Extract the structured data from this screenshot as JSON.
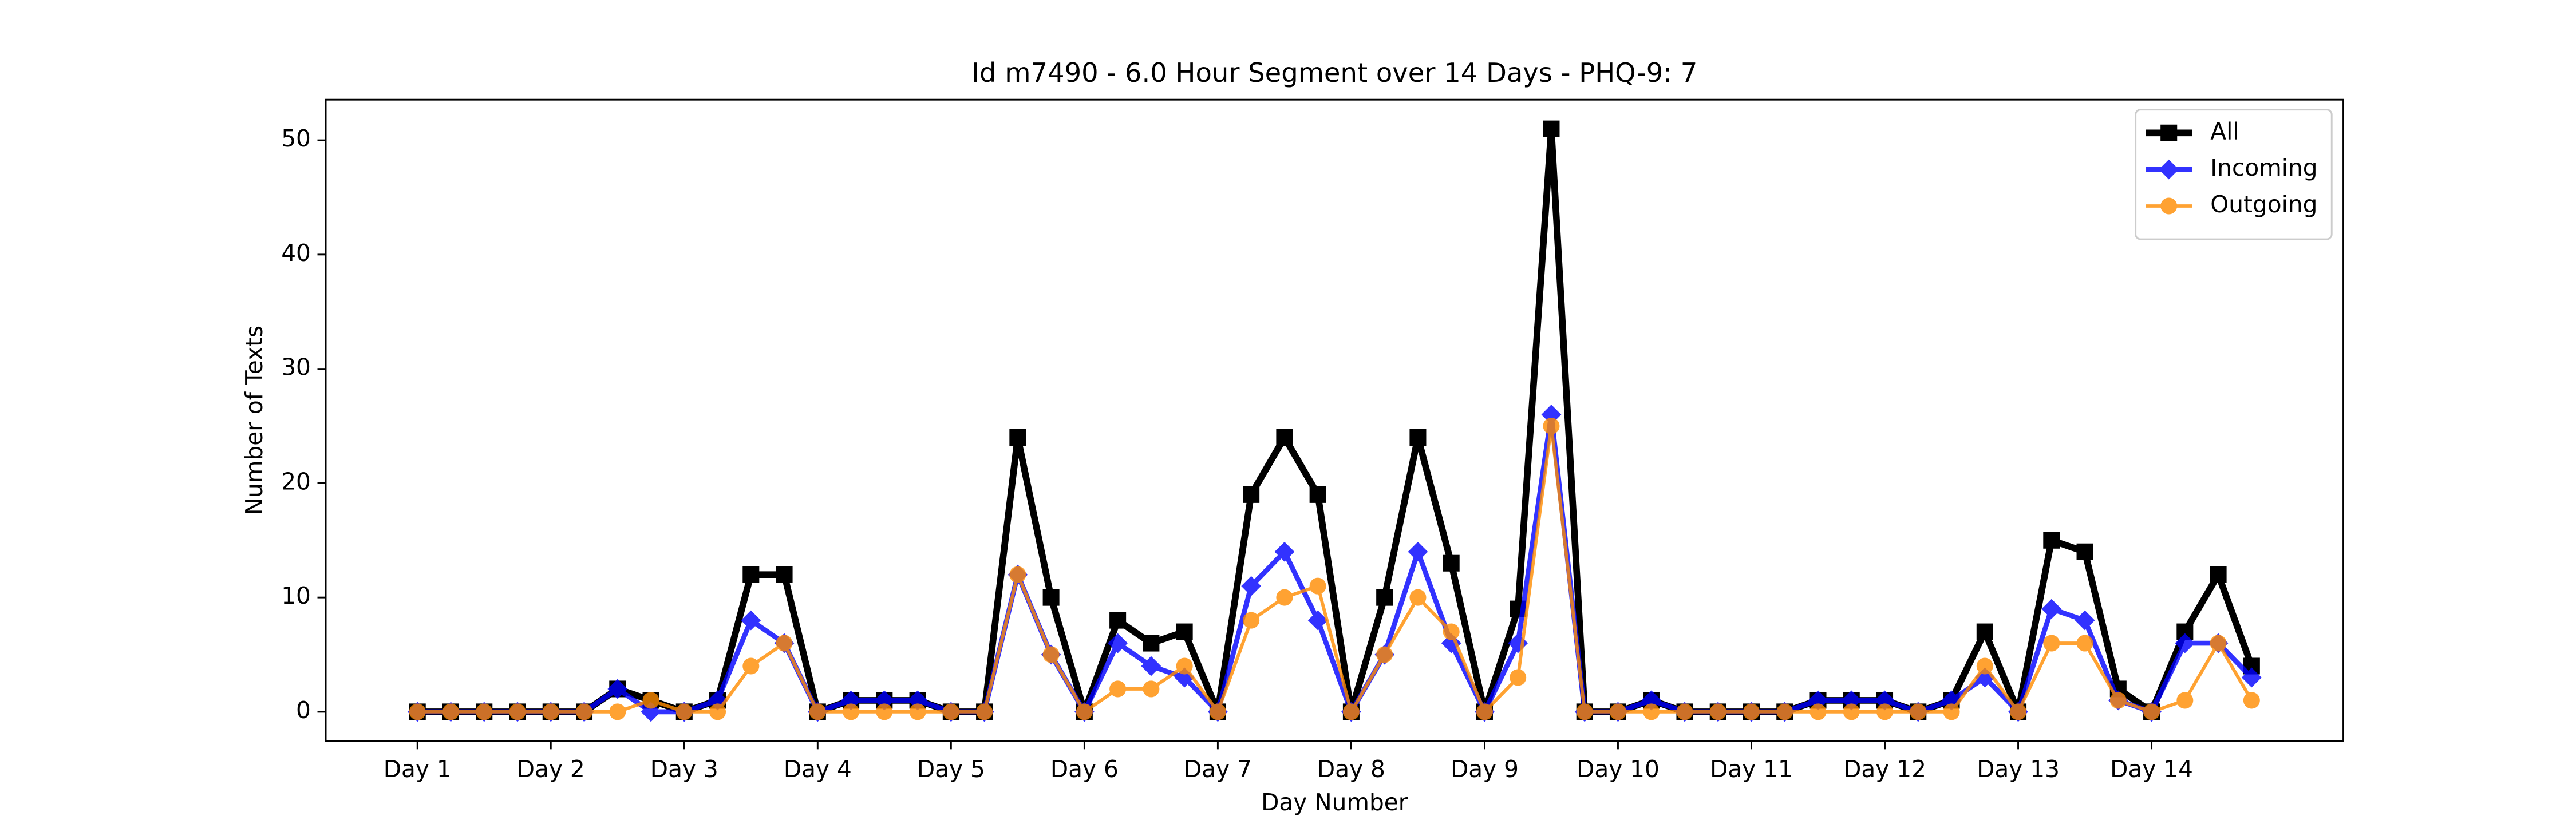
{
  "chart_data": {
    "type": "line",
    "title": "Id m7490 - 6.0 Hour Segment over 14 Days - PHQ-9: 7",
    "xlabel": "Day Number",
    "ylabel": "Number of Texts",
    "x": [
      0,
      1,
      2,
      3,
      4,
      5,
      6,
      7,
      8,
      9,
      10,
      11,
      12,
      13,
      14,
      15,
      16,
      17,
      18,
      19,
      20,
      21,
      22,
      23,
      24,
      25,
      26,
      27,
      28,
      29,
      30,
      31,
      32,
      33,
      34,
      35,
      36,
      37,
      38,
      39,
      40,
      41,
      42,
      43,
      44,
      45,
      46,
      47,
      48,
      49,
      50,
      51,
      52,
      53,
      54,
      55
    ],
    "series": [
      {
        "name": "All",
        "color": "#000000",
        "marker": "square",
        "values": [
          0,
          0,
          0,
          0,
          0,
          0,
          2,
          1,
          0,
          1,
          12,
          12,
          0,
          1,
          1,
          1,
          0,
          0,
          24,
          10,
          0,
          8,
          6,
          7,
          0,
          19,
          24,
          19,
          0,
          10,
          24,
          13,
          0,
          9,
          51,
          0,
          0,
          1,
          0,
          0,
          0,
          0,
          1,
          1,
          1,
          0,
          1,
          7,
          0,
          15,
          14,
          2,
          0,
          7,
          12,
          4
        ]
      },
      {
        "name": "Incoming",
        "color": "#0000ff",
        "marker": "diamond",
        "values": [
          0,
          0,
          0,
          0,
          0,
          0,
          2,
          0,
          0,
          1,
          8,
          6,
          0,
          1,
          1,
          1,
          0,
          0,
          12,
          5,
          0,
          6,
          4,
          3,
          0,
          11,
          14,
          8,
          0,
          5,
          14,
          6,
          0,
          6,
          26,
          0,
          0,
          1,
          0,
          0,
          0,
          0,
          1,
          1,
          1,
          0,
          1,
          3,
          0,
          9,
          8,
          1,
          0,
          6,
          6,
          3
        ]
      },
      {
        "name": "Outgoing",
        "color": "#ff8c00",
        "marker": "circle",
        "values": [
          0,
          0,
          0,
          0,
          0,
          0,
          0,
          1,
          0,
          0,
          4,
          6,
          0,
          0,
          0,
          0,
          0,
          0,
          12,
          5,
          0,
          2,
          2,
          4,
          0,
          8,
          10,
          11,
          0,
          5,
          10,
          7,
          0,
          3,
          25,
          0,
          0,
          0,
          0,
          0,
          0,
          0,
          0,
          0,
          0,
          0,
          0,
          4,
          0,
          6,
          6,
          1,
          0,
          1,
          6,
          1
        ]
      }
    ],
    "xlim": [
      -2.75,
      57.75
    ],
    "xticks": [
      {
        "value": 0,
        "label": "Day 1"
      },
      {
        "value": 4,
        "label": "Day 2"
      },
      {
        "value": 8,
        "label": "Day 3"
      },
      {
        "value": 12,
        "label": "Day 4"
      },
      {
        "value": 16,
        "label": "Day 5"
      },
      {
        "value": 20,
        "label": "Day 6"
      },
      {
        "value": 24,
        "label": "Day 7"
      },
      {
        "value": 28,
        "label": "Day 8"
      },
      {
        "value": 32,
        "label": "Day 9"
      },
      {
        "value": 36,
        "label": "Day 10"
      },
      {
        "value": 40,
        "label": "Day 11"
      },
      {
        "value": 44,
        "label": "Day 12"
      },
      {
        "value": 48,
        "label": "Day 13"
      },
      {
        "value": 52,
        "label": "Day 14"
      }
    ],
    "ylim": [
      -2.55,
      53.55
    ],
    "yticks": [
      0,
      10,
      20,
      30,
      40,
      50
    ],
    "legend": "upper right"
  }
}
